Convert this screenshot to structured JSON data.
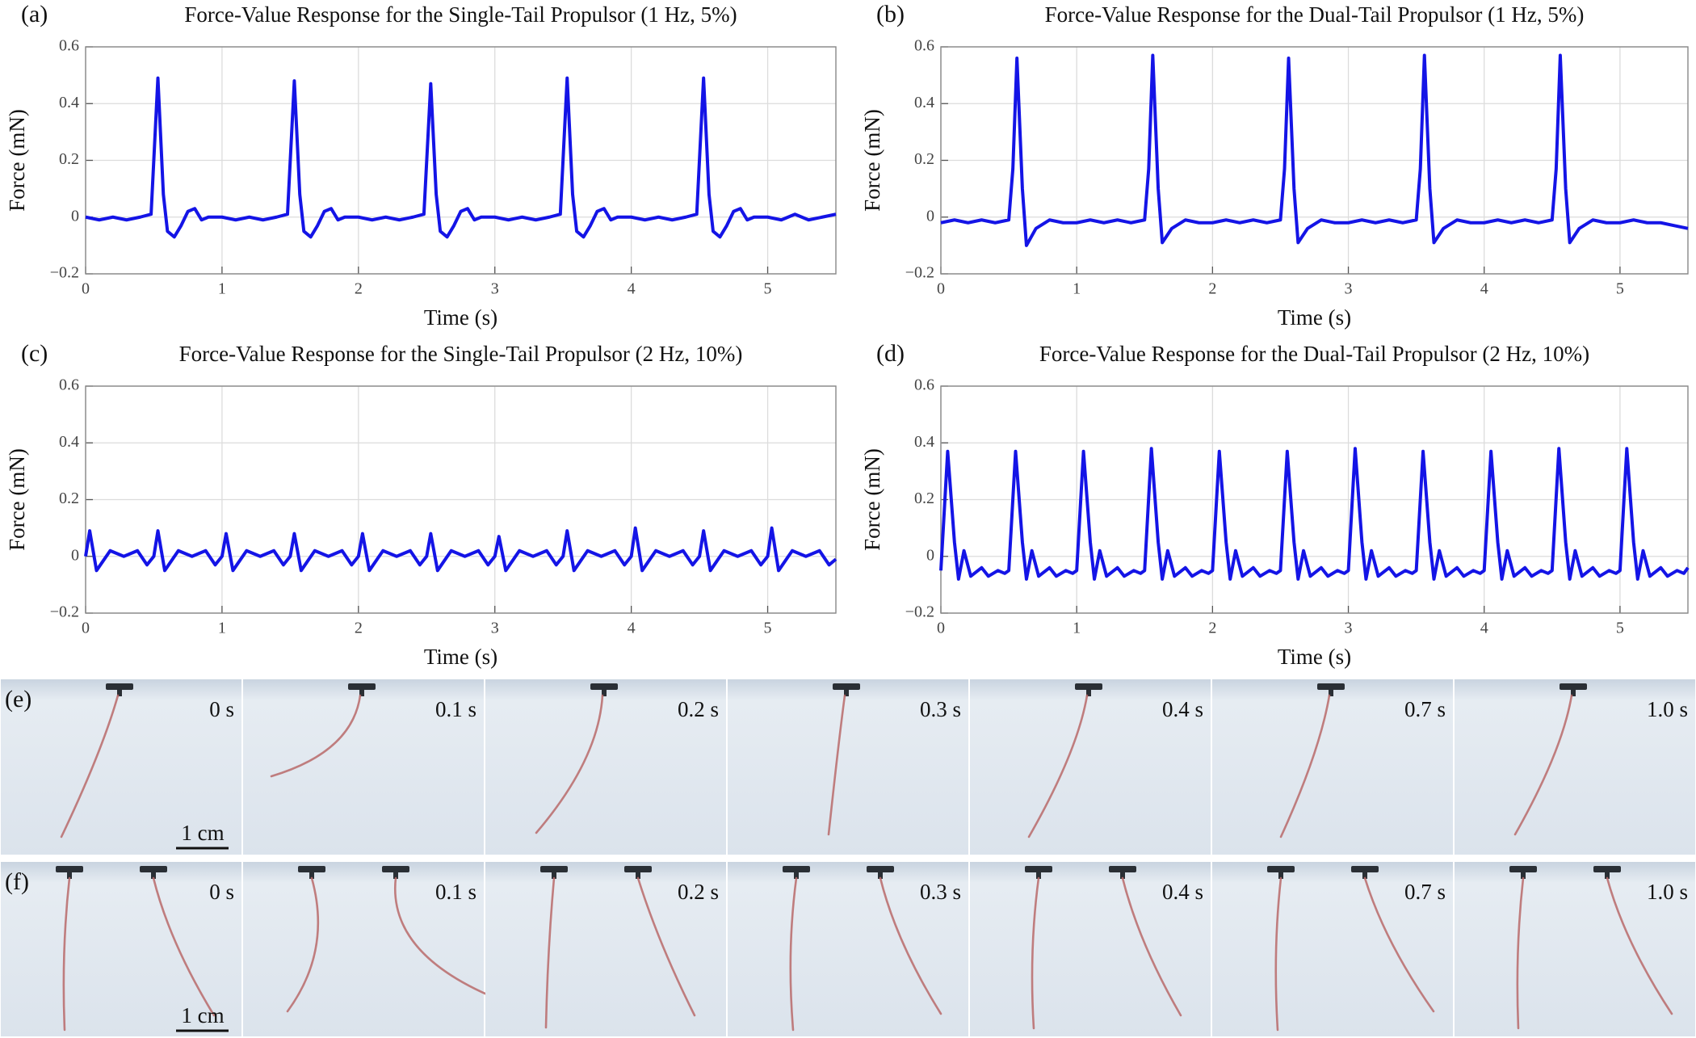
{
  "chart_data": [
    {
      "type": "line",
      "label": "(a)",
      "title": "Force-Value Response for the Single-Tail Propulsor (1 Hz, 5%)",
      "xlabel": "Time (s)",
      "ylabel": "Force (mN)",
      "color": "#1414e6",
      "xlim": [
        0,
        5.5
      ],
      "xticks": [
        0,
        1,
        2,
        3,
        4,
        5
      ],
      "ylim": [
        -0.2,
        0.6
      ],
      "yticks": [
        {
          "value": -0.2,
          "label": "−0.2"
        },
        0,
        0.2,
        0.4,
        0.6
      ],
      "grid": true,
      "x": [
        0,
        0.1,
        0.2,
        0.3,
        0.4,
        0.48,
        0.53,
        0.57,
        0.6,
        0.65,
        0.7,
        0.75,
        0.8,
        0.85,
        0.9,
        1,
        1.1,
        1.2,
        1.3,
        1.4,
        1.48,
        1.53,
        1.57,
        1.6,
        1.65,
        1.7,
        1.75,
        1.8,
        1.85,
        1.9,
        2,
        2.1,
        2.2,
        2.3,
        2.4,
        2.48,
        2.53,
        2.57,
        2.6,
        2.65,
        2.7,
        2.75,
        2.8,
        2.85,
        2.9,
        3,
        3.1,
        3.2,
        3.3,
        3.4,
        3.48,
        3.53,
        3.57,
        3.6,
        3.65,
        3.7,
        3.75,
        3.8,
        3.85,
        3.9,
        4,
        4.1,
        4.2,
        4.3,
        4.4,
        4.48,
        4.53,
        4.57,
        4.6,
        4.65,
        4.7,
        4.75,
        4.8,
        4.85,
        4.9,
        5,
        5.1,
        5.2,
        5.3,
        5.4,
        5.5
      ],
      "values": [
        0,
        -0.01,
        0,
        -0.01,
        0,
        0.01,
        0.49,
        0.08,
        -0.05,
        -0.07,
        -0.03,
        0.02,
        0.03,
        -0.01,
        0,
        0,
        -0.01,
        0,
        -0.01,
        0,
        0.01,
        0.48,
        0.08,
        -0.05,
        -0.07,
        -0.03,
        0.02,
        0.03,
        -0.01,
        0,
        0,
        -0.01,
        0,
        -0.01,
        0,
        0.01,
        0.47,
        0.08,
        -0.05,
        -0.07,
        -0.03,
        0.02,
        0.03,
        -0.01,
        0,
        0,
        -0.01,
        0,
        -0.01,
        0,
        0.01,
        0.49,
        0.08,
        -0.05,
        -0.07,
        -0.03,
        0.02,
        0.03,
        -0.01,
        0,
        0,
        -0.01,
        0,
        -0.01,
        0,
        0.01,
        0.49,
        0.08,
        -0.05,
        -0.07,
        -0.03,
        0.02,
        0.03,
        -0.01,
        0,
        0,
        -0.01,
        0.01,
        -0.01,
        0,
        0.01
      ]
    },
    {
      "type": "line",
      "label": "(b)",
      "title": "Force-Value Response for the Dual-Tail Propulsor (1 Hz, 5%)",
      "xlabel": "Time (s)",
      "ylabel": "Force (mN)",
      "color": "#1414e6",
      "xlim": [
        0,
        5.5
      ],
      "xticks": [
        0,
        1,
        2,
        3,
        4,
        5
      ],
      "ylim": [
        -0.2,
        0.6
      ],
      "yticks": [
        {
          "value": -0.2,
          "label": "−0.2"
        },
        0,
        0.2,
        0.4,
        0.6
      ],
      "grid": true,
      "x": [
        0,
        0.1,
        0.2,
        0.3,
        0.4,
        0.5,
        0.53,
        0.56,
        0.6,
        0.63,
        0.7,
        0.8,
        0.9,
        1,
        1.1,
        1.2,
        1.3,
        1.4,
        1.5,
        1.53,
        1.56,
        1.6,
        1.63,
        1.7,
        1.8,
        1.9,
        2,
        2.1,
        2.2,
        2.3,
        2.4,
        2.5,
        2.53,
        2.56,
        2.6,
        2.63,
        2.7,
        2.8,
        2.9,
        3,
        3.1,
        3.2,
        3.3,
        3.4,
        3.5,
        3.53,
        3.56,
        3.6,
        3.63,
        3.7,
        3.8,
        3.9,
        4,
        4.1,
        4.2,
        4.3,
        4.4,
        4.5,
        4.53,
        4.56,
        4.6,
        4.63,
        4.7,
        4.8,
        4.9,
        5,
        5.1,
        5.2,
        5.3,
        5.4,
        5.5
      ],
      "values": [
        -0.02,
        -0.01,
        -0.02,
        -0.01,
        -0.02,
        -0.01,
        0.17,
        0.56,
        0.1,
        -0.1,
        -0.04,
        -0.01,
        -0.02,
        -0.02,
        -0.01,
        -0.02,
        -0.01,
        -0.02,
        -0.01,
        0.17,
        0.57,
        0.1,
        -0.09,
        -0.04,
        -0.01,
        -0.02,
        -0.02,
        -0.01,
        -0.02,
        -0.01,
        -0.02,
        -0.01,
        0.17,
        0.56,
        0.1,
        -0.09,
        -0.04,
        -0.01,
        -0.02,
        -0.02,
        -0.01,
        -0.02,
        -0.01,
        -0.02,
        -0.01,
        0.17,
        0.57,
        0.1,
        -0.09,
        -0.04,
        -0.01,
        -0.02,
        -0.02,
        -0.01,
        -0.02,
        -0.01,
        -0.02,
        -0.01,
        0.17,
        0.57,
        0.1,
        -0.09,
        -0.04,
        -0.01,
        -0.02,
        -0.02,
        -0.01,
        -0.02,
        -0.02,
        -0.03,
        -0.04
      ]
    },
    {
      "type": "line",
      "label": "(c)",
      "title": "Force-Value Response for the Single-Tail Propulsor (2 Hz, 10%)",
      "xlabel": "Time (s)",
      "ylabel": "Force (mN)",
      "color": "#1414e6",
      "xlim": [
        0,
        5.5
      ],
      "xticks": [
        0,
        1,
        2,
        3,
        4,
        5
      ],
      "ylim": [
        -0.2,
        0.6
      ],
      "yticks": [
        {
          "value": -0.2,
          "label": "−0.2"
        },
        0,
        0.2,
        0.4,
        0.6
      ],
      "grid": true,
      "x": [
        0,
        0.03,
        0.08,
        0.18,
        0.28,
        0.38,
        0.45,
        0.5,
        0.53,
        0.58,
        0.68,
        0.78,
        0.88,
        0.95,
        1,
        1.03,
        1.08,
        1.18,
        1.28,
        1.38,
        1.45,
        1.5,
        1.53,
        1.58,
        1.68,
        1.78,
        1.88,
        1.95,
        2,
        2.03,
        2.08,
        2.18,
        2.28,
        2.38,
        2.45,
        2.5,
        2.53,
        2.58,
        2.68,
        2.78,
        2.88,
        2.95,
        3,
        3.03,
        3.08,
        3.18,
        3.28,
        3.38,
        3.45,
        3.5,
        3.53,
        3.58,
        3.68,
        3.78,
        3.88,
        3.95,
        4,
        4.03,
        4.08,
        4.18,
        4.28,
        4.38,
        4.45,
        4.5,
        4.53,
        4.58,
        4.68,
        4.78,
        4.88,
        4.95,
        5,
        5.03,
        5.08,
        5.18,
        5.28,
        5.38,
        5.45,
        5.5
      ],
      "values": [
        0,
        0.09,
        -0.05,
        0.02,
        0,
        0.02,
        -0.03,
        0,
        0.09,
        -0.05,
        0.02,
        0,
        0.02,
        -0.03,
        0,
        0.08,
        -0.05,
        0.02,
        0,
        0.02,
        -0.03,
        0,
        0.08,
        -0.05,
        0.02,
        0,
        0.02,
        -0.03,
        0,
        0.08,
        -0.05,
        0.02,
        0,
        0.02,
        -0.03,
        0,
        0.08,
        -0.05,
        0.02,
        0,
        0.02,
        -0.03,
        0,
        0.07,
        -0.05,
        0.02,
        0,
        0.02,
        -0.03,
        0,
        0.09,
        -0.05,
        0.02,
        0,
        0.02,
        -0.03,
        0,
        0.1,
        -0.05,
        0.02,
        0,
        0.02,
        -0.03,
        0,
        0.09,
        -0.05,
        0.02,
        0,
        0.02,
        -0.03,
        0,
        0.1,
        -0.05,
        0.02,
        0,
        0.02,
        -0.03,
        -0.01
      ]
    },
    {
      "type": "line",
      "label": "(d)",
      "title": "Force-Value Response for the Dual-Tail Propulsor (2 Hz, 10%)",
      "xlabel": "Time (s)",
      "ylabel": "Force (mN)",
      "color": "#1414e6",
      "xlim": [
        0,
        5.5
      ],
      "xticks": [
        0,
        1,
        2,
        3,
        4,
        5
      ],
      "ylim": [
        -0.2,
        0.6
      ],
      "yticks": [
        {
          "value": -0.2,
          "label": "−0.2"
        },
        0,
        0.2,
        0.4,
        0.6
      ],
      "grid": true,
      "x": [
        0,
        0.05,
        0.1,
        0.13,
        0.17,
        0.22,
        0.3,
        0.35,
        0.42,
        0.47,
        0.5,
        0.55,
        0.6,
        0.63,
        0.67,
        0.72,
        0.8,
        0.85,
        0.92,
        0.97,
        1,
        1.05,
        1.1,
        1.13,
        1.17,
        1.22,
        1.3,
        1.35,
        1.42,
        1.47,
        1.5,
        1.55,
        1.6,
        1.63,
        1.67,
        1.72,
        1.8,
        1.85,
        1.92,
        1.97,
        2,
        2.05,
        2.1,
        2.13,
        2.17,
        2.22,
        2.3,
        2.35,
        2.42,
        2.47,
        2.5,
        2.55,
        2.6,
        2.63,
        2.67,
        2.72,
        2.8,
        2.85,
        2.92,
        2.97,
        3,
        3.05,
        3.1,
        3.13,
        3.17,
        3.22,
        3.3,
        3.35,
        3.42,
        3.47,
        3.5,
        3.55,
        3.6,
        3.63,
        3.67,
        3.72,
        3.8,
        3.85,
        3.92,
        3.97,
        4,
        4.05,
        4.1,
        4.13,
        4.17,
        4.22,
        4.3,
        4.35,
        4.42,
        4.47,
        4.5,
        4.55,
        4.6,
        4.63,
        4.67,
        4.72,
        4.8,
        4.85,
        4.92,
        4.97,
        5,
        5.05,
        5.1,
        5.13,
        5.17,
        5.22,
        5.3,
        5.35,
        5.42,
        5.47,
        5.5
      ],
      "values": [
        -0.05,
        0.37,
        0.05,
        -0.08,
        0.02,
        -0.07,
        -0.04,
        -0.07,
        -0.05,
        -0.06,
        -0.05,
        0.37,
        0.05,
        -0.08,
        0.02,
        -0.07,
        -0.04,
        -0.07,
        -0.05,
        -0.06,
        -0.05,
        0.37,
        0.05,
        -0.08,
        0.02,
        -0.07,
        -0.04,
        -0.07,
        -0.05,
        -0.06,
        -0.05,
        0.38,
        0.05,
        -0.08,
        0.02,
        -0.07,
        -0.04,
        -0.07,
        -0.05,
        -0.06,
        -0.05,
        0.37,
        0.05,
        -0.08,
        0.02,
        -0.07,
        -0.04,
        -0.07,
        -0.05,
        -0.06,
        -0.05,
        0.37,
        0.05,
        -0.08,
        0.02,
        -0.07,
        -0.04,
        -0.07,
        -0.05,
        -0.06,
        -0.05,
        0.38,
        0.05,
        -0.08,
        0.02,
        -0.07,
        -0.04,
        -0.07,
        -0.05,
        -0.06,
        -0.05,
        0.37,
        0.05,
        -0.08,
        0.02,
        -0.07,
        -0.04,
        -0.07,
        -0.05,
        -0.06,
        -0.05,
        0.37,
        0.05,
        -0.08,
        0.02,
        -0.07,
        -0.04,
        -0.07,
        -0.05,
        -0.06,
        -0.05,
        0.38,
        0.05,
        -0.08,
        0.02,
        -0.07,
        -0.04,
        -0.07,
        -0.05,
        -0.06,
        -0.05,
        0.38,
        0.05,
        -0.08,
        0.02,
        -0.07,
        -0.04,
        -0.07,
        -0.05,
        -0.06,
        -0.04
      ]
    }
  ],
  "photo_strips": [
    {
      "label": "(e)",
      "times": [
        "0 s",
        "0.1 s",
        "0.2 s",
        "0.3 s",
        "0.4 s",
        "0.7 s",
        "1.0 s"
      ],
      "scale_bar": "1 cm"
    },
    {
      "label": "(f)",
      "times": [
        "0 s",
        "0.1 s",
        "0.2 s",
        "0.3 s",
        "0.4 s",
        "0.7 s",
        "1.0 s"
      ],
      "scale_bar": "1 cm"
    }
  ]
}
